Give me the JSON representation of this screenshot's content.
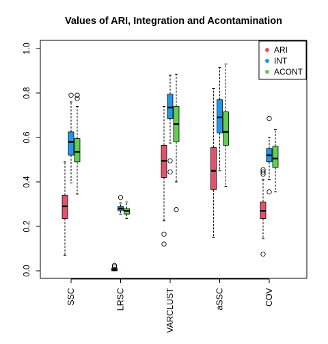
{
  "chart_data": {
    "type": "boxplot",
    "title": "Values of ARI, Integration and Acontamination",
    "xlabel": "",
    "ylabel": "",
    "ylim": [
      0,
      1
    ],
    "yticks": [
      "0.0",
      "0.2",
      "0.4",
      "0.6",
      "0.8",
      "1.0"
    ],
    "categories": [
      "SSC",
      "LRSC",
      "VARCLUST",
      "aSSC",
      "COV"
    ],
    "legend_position": "top-right",
    "series": [
      {
        "name": "ARI",
        "color": "#DF536B",
        "boxes": [
          {
            "whisker_low": 0.07,
            "q1": 0.235,
            "median": 0.29,
            "q3": 0.34,
            "whisker_high": 0.49,
            "outliers": []
          },
          {
            "whisker_low": 0.0,
            "q1": 0.0,
            "median": 0.005,
            "q3": 0.012,
            "whisker_high": 0.015,
            "outliers": [
              0.018,
              0.024
            ]
          },
          {
            "whisker_low": 0.225,
            "q1": 0.42,
            "median": 0.495,
            "q3": 0.565,
            "whisker_high": 0.74,
            "outliers": [
              0.165,
              0.12
            ]
          },
          {
            "whisker_low": 0.15,
            "q1": 0.365,
            "median": 0.45,
            "q3": 0.555,
            "whisker_high": 0.82,
            "outliers": []
          },
          {
            "whisker_low": 0.145,
            "q1": 0.235,
            "median": 0.27,
            "q3": 0.31,
            "whisker_high": 0.41,
            "outliers": [
              0.435,
              0.445,
              0.455,
              0.075
            ]
          }
        ]
      },
      {
        "name": "INT",
        "color": "#2297E6",
        "boxes": [
          {
            "whisker_low": 0.395,
            "q1": 0.52,
            "median": 0.58,
            "q3": 0.625,
            "whisker_high": 0.76,
            "outliers": [
              0.79
            ]
          },
          {
            "whisker_low": 0.255,
            "q1": 0.27,
            "median": 0.28,
            "q3": 0.29,
            "whisker_high": 0.305,
            "outliers": [
              0.33
            ]
          },
          {
            "whisker_low": 0.575,
            "q1": 0.685,
            "median": 0.735,
            "q3": 0.795,
            "whisker_high": 0.88,
            "outliers": [
              0.495,
              0.445
            ]
          },
          {
            "whisker_low": 0.45,
            "q1": 0.62,
            "median": 0.69,
            "q3": 0.77,
            "whisker_high": 0.915,
            "outliers": []
          },
          {
            "whisker_low": 0.41,
            "q1": 0.49,
            "median": 0.52,
            "q3": 0.55,
            "whisker_high": 0.6,
            "outliers": [
              0.685,
              0.355
            ]
          }
        ]
      },
      {
        "name": "ACONT",
        "color": "#61D04F",
        "boxes": [
          {
            "whisker_low": 0.345,
            "q1": 0.49,
            "median": 0.535,
            "q3": 0.595,
            "whisker_high": 0.74,
            "outliers": [
              0.79,
              0.775
            ]
          },
          {
            "whisker_low": 0.235,
            "q1": 0.255,
            "median": 0.27,
            "q3": 0.28,
            "whisker_high": 0.31,
            "outliers": []
          },
          {
            "whisker_low": 0.4,
            "q1": 0.58,
            "median": 0.66,
            "q3": 0.74,
            "whisker_high": 0.885,
            "outliers": [
              0.275
            ]
          },
          {
            "whisker_low": 0.38,
            "q1": 0.565,
            "median": 0.625,
            "q3": 0.715,
            "whisker_high": 0.93,
            "outliers": []
          },
          {
            "whisker_low": 0.355,
            "q1": 0.465,
            "median": 0.505,
            "q3": 0.56,
            "whisker_high": 0.635,
            "outliers": []
          }
        ]
      }
    ]
  }
}
